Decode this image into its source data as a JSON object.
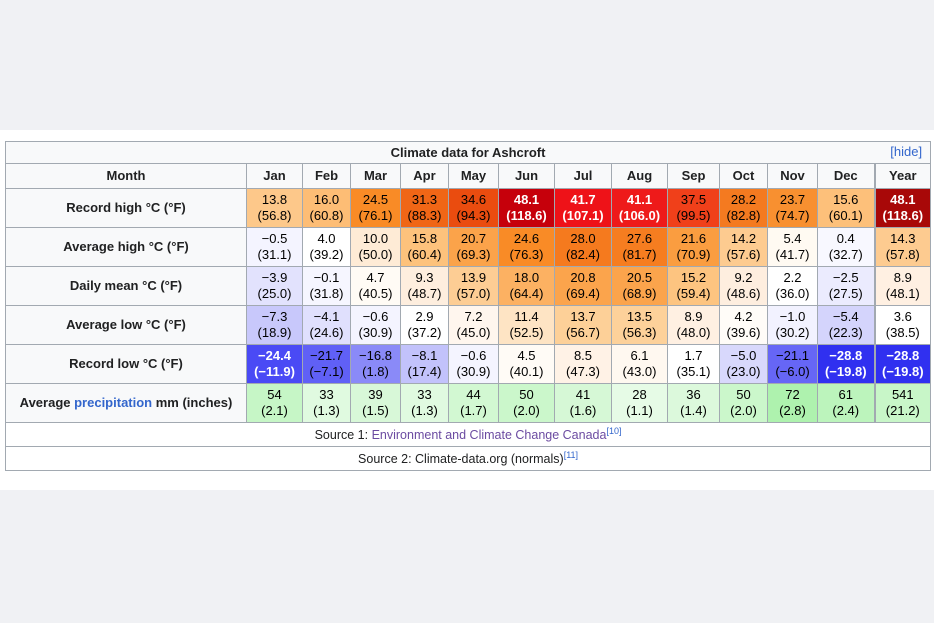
{
  "table": {
    "caption": "Climate data for Ashcroft",
    "hide_label": "[hide]",
    "header": [
      "Month",
      "Jan",
      "Feb",
      "Mar",
      "Apr",
      "May",
      "Jun",
      "Jul",
      "Aug",
      "Sep",
      "Oct",
      "Nov",
      "Dec",
      "Year"
    ],
    "rows": [
      {
        "label": "Record high °C (°F)",
        "cells": [
          {
            "c": "13.8",
            "f": "(56.8)",
            "bg": "#fdc88a",
            "fg": "#000000"
          },
          {
            "c": "16.0",
            "f": "(60.8)",
            "bg": "#fdbd75",
            "fg": "#000000"
          },
          {
            "c": "24.5",
            "f": "(76.1)",
            "bg": "#f98b26",
            "fg": "#000000"
          },
          {
            "c": "31.3",
            "f": "(88.3)",
            "bg": "#f06616",
            "fg": "#000000"
          },
          {
            "c": "34.6",
            "f": "(94.3)",
            "bg": "#ea4c0f",
            "fg": "#000000"
          },
          {
            "c": "48.1",
            "f": "(118.6)",
            "bg": "#c6000b",
            "fg": "#ffffff"
          },
          {
            "c": "41.7",
            "f": "(107.1)",
            "bg": "#ee1218",
            "fg": "#ffffff"
          },
          {
            "c": "41.1",
            "f": "(106.0)",
            "bg": "#ee1a1a",
            "fg": "#ffffff"
          },
          {
            "c": "37.5",
            "f": "(99.5)",
            "bg": "#f0401a",
            "fg": "#000000"
          },
          {
            "c": "28.2",
            "f": "(82.8)",
            "bg": "#f47a20",
            "fg": "#000000"
          },
          {
            "c": "23.7",
            "f": "(74.7)",
            "bg": "#f89030",
            "fg": "#000000"
          },
          {
            "c": "15.6",
            "f": "(60.1)",
            "bg": "#fdc07a",
            "fg": "#000000"
          },
          {
            "c": "48.1",
            "f": "(118.6)",
            "bg": "#a80808",
            "fg": "#ffffff"
          }
        ]
      },
      {
        "label": "Average high °C (°F)",
        "cells": [
          {
            "c": "−0.5",
            "f": "(31.1)",
            "bg": "#f4f4ff",
            "fg": "#000000"
          },
          {
            "c": "4.0",
            "f": "(39.2)",
            "bg": "#ffffff",
            "fg": "#000000"
          },
          {
            "c": "10.0",
            "f": "(50.0)",
            "bg": "#feebd6",
            "fg": "#000000"
          },
          {
            "c": "15.8",
            "f": "(60.4)",
            "bg": "#fdc27c",
            "fg": "#000000"
          },
          {
            "c": "20.7",
            "f": "(69.3)",
            "bg": "#fba34a",
            "fg": "#000000"
          },
          {
            "c": "24.6",
            "f": "(76.3)",
            "bg": "#f98b26",
            "fg": "#000000"
          },
          {
            "c": "28.0",
            "f": "(82.4)",
            "bg": "#f57a1e",
            "fg": "#000000"
          },
          {
            "c": "27.6",
            "f": "(81.7)",
            "bg": "#f67d20",
            "fg": "#000000"
          },
          {
            "c": "21.6",
            "f": "(70.9)",
            "bg": "#fa9d40",
            "fg": "#000000"
          },
          {
            "c": "14.2",
            "f": "(57.6)",
            "bg": "#fdcb90",
            "fg": "#000000"
          },
          {
            "c": "5.4",
            "f": "(41.7)",
            "bg": "#fffaf2",
            "fg": "#000000"
          },
          {
            "c": "0.4",
            "f": "(32.7)",
            "bg": "#f8f8ff",
            "fg": "#000000"
          },
          {
            "c": "14.3",
            "f": "(57.8)",
            "bg": "#fdcb90",
            "fg": "#000000"
          }
        ]
      },
      {
        "label": "Daily mean °C (°F)",
        "cells": [
          {
            "c": "−3.9",
            "f": "(25.0)",
            "bg": "#e2e2fd",
            "fg": "#000000"
          },
          {
            "c": "−0.1",
            "f": "(31.8)",
            "bg": "#f6f6ff",
            "fg": "#000000"
          },
          {
            "c": "4.7",
            "f": "(40.5)",
            "bg": "#fffbf5",
            "fg": "#000000"
          },
          {
            "c": "9.3",
            "f": "(48.7)",
            "bg": "#feeede",
            "fg": "#000000"
          },
          {
            "c": "13.9",
            "f": "(57.0)",
            "bg": "#fdcd94",
            "fg": "#000000"
          },
          {
            "c": "18.0",
            "f": "(64.4)",
            "bg": "#fcb162",
            "fg": "#000000"
          },
          {
            "c": "20.8",
            "f": "(69.4)",
            "bg": "#fba44c",
            "fg": "#000000"
          },
          {
            "c": "20.5",
            "f": "(68.9)",
            "bg": "#fba44c",
            "fg": "#000000"
          },
          {
            "c": "15.2",
            "f": "(59.4)",
            "bg": "#fdc480",
            "fg": "#000000"
          },
          {
            "c": "9.2",
            "f": "(48.6)",
            "bg": "#feeedf",
            "fg": "#000000"
          },
          {
            "c": "2.2",
            "f": "(36.0)",
            "bg": "#ffffff",
            "fg": "#000000"
          },
          {
            "c": "−2.5",
            "f": "(27.5)",
            "bg": "#ebebfe",
            "fg": "#000000"
          },
          {
            "c": "8.9",
            "f": "(48.1)",
            "bg": "#fff0e2",
            "fg": "#000000"
          }
        ]
      },
      {
        "label": "Average low °C (°F)",
        "cells": [
          {
            "c": "−7.3",
            "f": "(18.9)",
            "bg": "#c8c8fb",
            "fg": "#000000"
          },
          {
            "c": "−4.1",
            "f": "(24.6)",
            "bg": "#e0e0fd",
            "fg": "#000000"
          },
          {
            "c": "−0.6",
            "f": "(30.9)",
            "bg": "#f4f4ff",
            "fg": "#000000"
          },
          {
            "c": "2.9",
            "f": "(37.2)",
            "bg": "#ffffff",
            "fg": "#000000"
          },
          {
            "c": "7.2",
            "f": "(45.0)",
            "bg": "#fff6ee",
            "fg": "#000000"
          },
          {
            "c": "11.4",
            "f": "(52.5)",
            "bg": "#fee4c4",
            "fg": "#000000"
          },
          {
            "c": "13.7",
            "f": "(56.7)",
            "bg": "#fdd098",
            "fg": "#000000"
          },
          {
            "c": "13.5",
            "f": "(56.3)",
            "bg": "#fdd19a",
            "fg": "#000000"
          },
          {
            "c": "8.9",
            "f": "(48.0)",
            "bg": "#fff0e2",
            "fg": "#000000"
          },
          {
            "c": "4.2",
            "f": "(39.6)",
            "bg": "#fffcf8",
            "fg": "#000000"
          },
          {
            "c": "−1.0",
            "f": "(30.2)",
            "bg": "#f2f2ff",
            "fg": "#000000"
          },
          {
            "c": "−5.4",
            "f": "(22.3)",
            "bg": "#d4d4fc",
            "fg": "#000000"
          },
          {
            "c": "3.6",
            "f": "(38.5)",
            "bg": "#ffffff",
            "fg": "#000000"
          }
        ]
      },
      {
        "label": "Record low °C (°F)",
        "cells": [
          {
            "c": "−24.4",
            "f": "(−11.9)",
            "bg": "#4a4af5",
            "fg": "#ffffff"
          },
          {
            "c": "−21.7",
            "f": "(−7.1)",
            "bg": "#6060f6",
            "fg": "#000000"
          },
          {
            "c": "−16.8",
            "f": "(1.8)",
            "bg": "#8a8af8",
            "fg": "#000000"
          },
          {
            "c": "−8.1",
            "f": "(17.4)",
            "bg": "#c2c2fb",
            "fg": "#000000"
          },
          {
            "c": "−0.6",
            "f": "(30.9)",
            "bg": "#f4f4ff",
            "fg": "#000000"
          },
          {
            "c": "4.5",
            "f": "(40.1)",
            "bg": "#fffbf6",
            "fg": "#000000"
          },
          {
            "c": "8.5",
            "f": "(47.3)",
            "bg": "#fff2e6",
            "fg": "#000000"
          },
          {
            "c": "6.1",
            "f": "(43.0)",
            "bg": "#fff8f0",
            "fg": "#000000"
          },
          {
            "c": "1.7",
            "f": "(35.1)",
            "bg": "#ffffff",
            "fg": "#000000"
          },
          {
            "c": "−5.0",
            "f": "(23.0)",
            "bg": "#d8d8fc",
            "fg": "#000000"
          },
          {
            "c": "−21.1",
            "f": "(−6.0)",
            "bg": "#6666f6",
            "fg": "#000000"
          },
          {
            "c": "−28.8",
            "f": "(−19.8)",
            "bg": "#3030f0",
            "fg": "#ffffff"
          },
          {
            "c": "−28.8",
            "f": "(−19.8)",
            "bg": "#3030f0",
            "fg": "#ffffff"
          }
        ]
      },
      {
        "label_prefix": "Average ",
        "label_link": "precipitation",
        "label_suffix": " mm (inches)",
        "cells": [
          {
            "c": "54",
            "f": "(2.1)",
            "bg": "#c6f6c6",
            "fg": "#000000"
          },
          {
            "c": "33",
            "f": "(1.3)",
            "bg": "#e0fae0",
            "fg": "#000000"
          },
          {
            "c": "39",
            "f": "(1.5)",
            "bg": "#d8f8d8",
            "fg": "#000000"
          },
          {
            "c": "33",
            "f": "(1.3)",
            "bg": "#e0fae0",
            "fg": "#000000"
          },
          {
            "c": "44",
            "f": "(1.7)",
            "bg": "#d2f8d2",
            "fg": "#000000"
          },
          {
            "c": "50",
            "f": "(2.0)",
            "bg": "#cbf7cb",
            "fg": "#000000"
          },
          {
            "c": "41",
            "f": "(1.6)",
            "bg": "#d6f8d6",
            "fg": "#000000"
          },
          {
            "c": "28",
            "f": "(1.1)",
            "bg": "#e6fbe6",
            "fg": "#000000"
          },
          {
            "c": "36",
            "f": "(1.4)",
            "bg": "#dcf9dc",
            "fg": "#000000"
          },
          {
            "c": "50",
            "f": "(2.0)",
            "bg": "#cbf7cb",
            "fg": "#000000"
          },
          {
            "c": "72",
            "f": "(2.8)",
            "bg": "#aef2ae",
            "fg": "#000000"
          },
          {
            "c": "61",
            "f": "(2.4)",
            "bg": "#bcf4bc",
            "fg": "#000000"
          },
          {
            "c": "541",
            "f": "(21.2)",
            "bg": "#c8f6c8",
            "fg": "#000000"
          }
        ]
      }
    ],
    "source1_prefix": "Source 1: ",
    "source1_link": "Environment and Climate Change Canada",
    "source1_ref": "[10]",
    "source2_text": "Source 2: Climate-data.org (normals)",
    "source2_ref": "[11]"
  },
  "colors": {
    "link": "#3366cc",
    "visited": "#6b4ba1",
    "border": "#a2a9b1",
    "header_bg": "#f8f9fa"
  }
}
